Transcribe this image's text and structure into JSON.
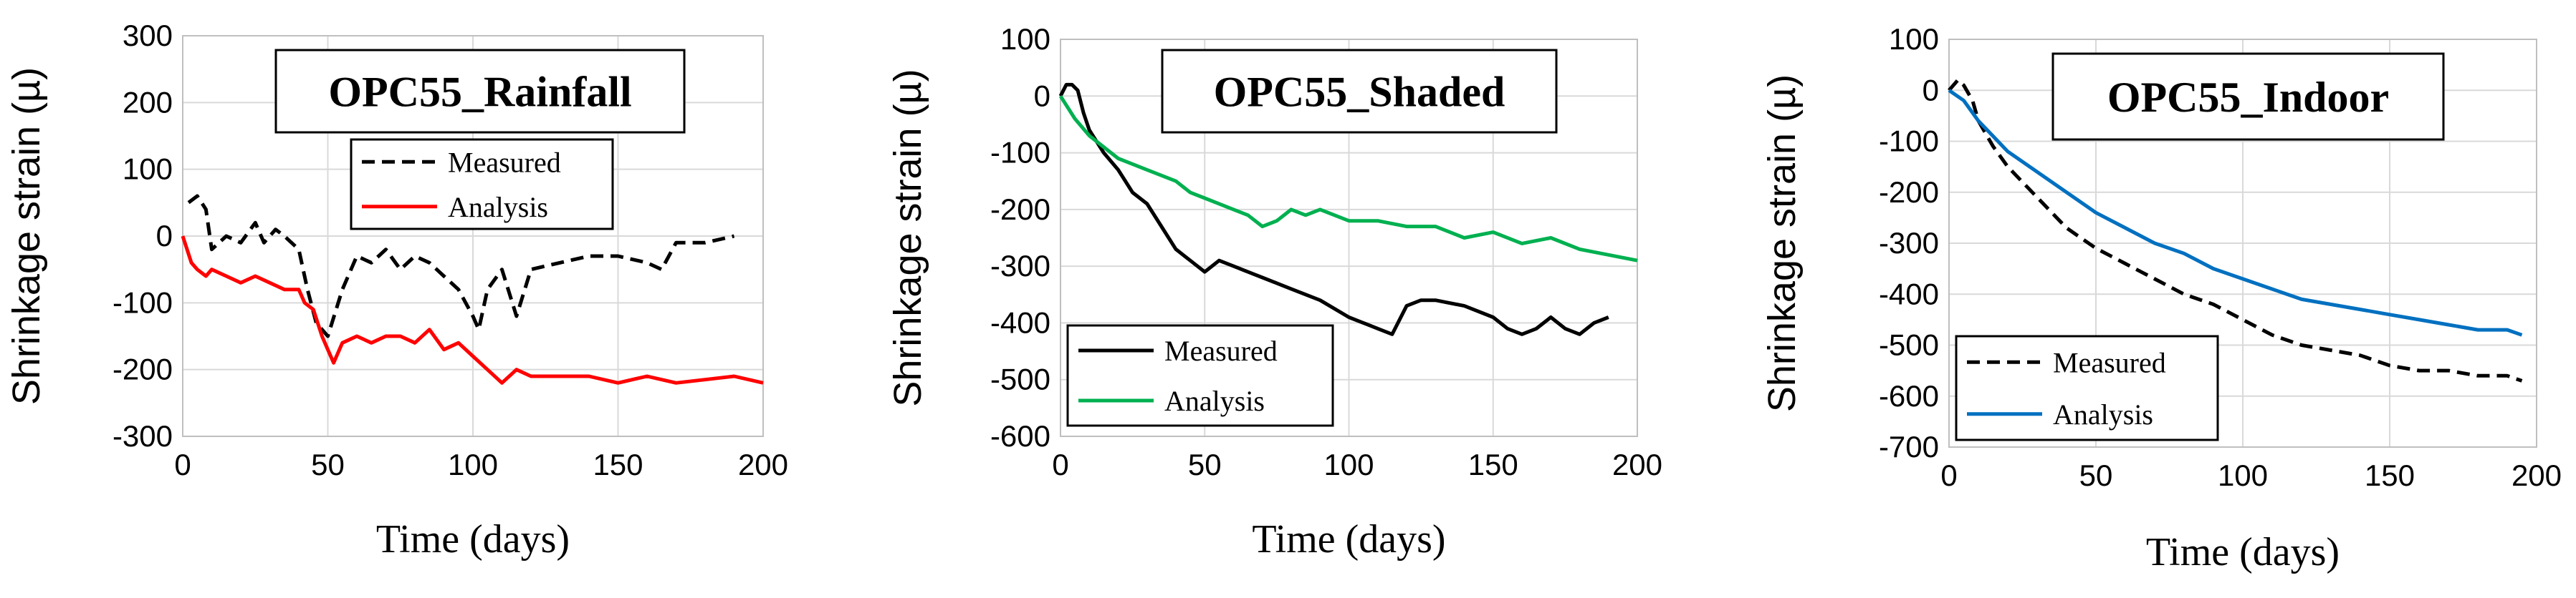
{
  "chart_data": [
    {
      "type": "line",
      "title": "OPC55_Rainfall",
      "xlabel": "Time (days)",
      "ylabel": "Shrinkage strain (µ)",
      "xlim": [
        0,
        200
      ],
      "ylim": [
        -300,
        300
      ],
      "xticks": [
        0,
        50,
        100,
        150,
        200
      ],
      "yticks": [
        -300,
        -200,
        -100,
        0,
        100,
        200,
        300
      ],
      "xtick_labels": [
        "0",
        "50",
        "100",
        "150",
        "200"
      ],
      "ytick_labels": [
        "-300",
        "-200",
        "-100",
        "0",
        "100",
        "200",
        "300"
      ],
      "grid": true,
      "legend": "middle-left",
      "series": [
        {
          "name": "Measured",
          "style": "dashed",
          "color": "#000000",
          "x": [
            2,
            5,
            8,
            10,
            15,
            20,
            25,
            28,
            32,
            35,
            40,
            43,
            46,
            50,
            55,
            60,
            65,
            70,
            75,
            80,
            85,
            90,
            95,
            100,
            102,
            105,
            110,
            115,
            120,
            130,
            140,
            150,
            160,
            165,
            170,
            180,
            190
          ],
          "y": [
            50,
            60,
            40,
            -20,
            0,
            -10,
            20,
            -10,
            10,
            0,
            -20,
            -80,
            -130,
            -150,
            -80,
            -30,
            -40,
            -20,
            -50,
            -30,
            -40,
            -60,
            -80,
            -120,
            -140,
            -80,
            -50,
            -120,
            -50,
            -40,
            -30,
            -30,
            -40,
            -50,
            -10,
            -10,
            0
          ]
        },
        {
          "name": "Analysis",
          "style": "solid",
          "color": "#ff0000",
          "x": [
            0,
            3,
            5,
            8,
            10,
            15,
            20,
            25,
            30,
            35,
            40,
            42,
            45,
            48,
            50,
            52,
            55,
            60,
            65,
            70,
            75,
            80,
            85,
            90,
            95,
            100,
            105,
            110,
            115,
            120,
            130,
            140,
            150,
            160,
            170,
            180,
            190,
            200
          ],
          "y": [
            0,
            -40,
            -50,
            -60,
            -50,
            -60,
            -70,
            -60,
            -70,
            -80,
            -80,
            -100,
            -110,
            -150,
            -170,
            -190,
            -160,
            -150,
            -160,
            -150,
            -150,
            -160,
            -140,
            -170,
            -160,
            -180,
            -200,
            -220,
            -200,
            -210,
            -210,
            -210,
            -220,
            -210,
            -220,
            -215,
            -210,
            -220
          ]
        }
      ]
    },
    {
      "type": "line",
      "title": "OPC55_Shaded",
      "xlabel": "Time (days)",
      "ylabel": "Shrinkage strain (µ)",
      "xlim": [
        0,
        200
      ],
      "ylim": [
        -600,
        100
      ],
      "xticks": [
        0,
        50,
        100,
        150,
        200
      ],
      "yticks": [
        -600,
        -500,
        -400,
        -300,
        -200,
        -100,
        0,
        100
      ],
      "xtick_labels": [
        "0",
        "50",
        "100",
        "150",
        "200"
      ],
      "ytick_labels": [
        "-600",
        "-500",
        "-400",
        "-300",
        "-200",
        "-100",
        "0",
        "100"
      ],
      "grid": true,
      "legend": "bottom-left",
      "series": [
        {
          "name": "Measured",
          "style": "solid",
          "color": "#000000",
          "x": [
            0,
            2,
            4,
            6,
            8,
            10,
            15,
            20,
            25,
            30,
            35,
            40,
            45,
            50,
            55,
            60,
            65,
            70,
            75,
            80,
            90,
            100,
            105,
            110,
            115,
            120,
            125,
            130,
            140,
            150,
            155,
            160,
            165,
            170,
            175,
            180,
            185,
            190
          ],
          "y": [
            0,
            20,
            20,
            10,
            -30,
            -60,
            -100,
            -130,
            -170,
            -190,
            -230,
            -270,
            -290,
            -310,
            -290,
            -300,
            -310,
            -320,
            -330,
            -340,
            -360,
            -390,
            -400,
            -410,
            -420,
            -370,
            -360,
            -360,
            -370,
            -390,
            -410,
            -420,
            -410,
            -390,
            -410,
            -420,
            -400,
            -390
          ]
        },
        {
          "name": "Analysis",
          "style": "solid",
          "color": "#00b050",
          "x": [
            0,
            5,
            10,
            15,
            20,
            25,
            30,
            35,
            40,
            45,
            50,
            55,
            60,
            65,
            70,
            75,
            80,
            85,
            90,
            95,
            100,
            110,
            120,
            130,
            140,
            150,
            160,
            170,
            180,
            190,
            200
          ],
          "y": [
            0,
            -40,
            -70,
            -90,
            -110,
            -120,
            -130,
            -140,
            -150,
            -170,
            -180,
            -190,
            -200,
            -210,
            -230,
            -220,
            -200,
            -210,
            -200,
            -210,
            -220,
            -220,
            -230,
            -230,
            -250,
            -240,
            -260,
            -250,
            -270,
            -280,
            -290
          ]
        }
      ]
    },
    {
      "type": "line",
      "title": "OPC55_Indoor",
      "xlabel": "Time (days)",
      "ylabel": "Shrinkage strain (µ)",
      "xlim": [
        0,
        200
      ],
      "ylim": [
        -700,
        100
      ],
      "xticks": [
        0,
        50,
        100,
        150,
        200
      ],
      "yticks": [
        -700,
        -600,
        -500,
        -400,
        -300,
        -200,
        -100,
        0,
        100
      ],
      "xtick_labels": [
        "0",
        "50",
        "100",
        "150",
        "200"
      ],
      "ytick_labels": [
        "-700",
        "-600",
        "-500",
        "-400",
        "-300",
        "-200",
        "-100",
        "0",
        "100"
      ],
      "grid": true,
      "legend": "bottom-left",
      "series": [
        {
          "name": "Measured",
          "style": "dashed",
          "color": "#000000",
          "x": [
            0,
            3,
            5,
            8,
            10,
            15,
            20,
            25,
            30,
            35,
            40,
            45,
            50,
            60,
            70,
            80,
            90,
            100,
            110,
            120,
            130,
            140,
            150,
            160,
            170,
            180,
            190,
            195
          ],
          "y": [
            0,
            20,
            10,
            -20,
            -60,
            -110,
            -150,
            -180,
            -210,
            -240,
            -270,
            -290,
            -310,
            -340,
            -370,
            -400,
            -420,
            -450,
            -480,
            -500,
            -510,
            -520,
            -540,
            -550,
            -550,
            -560,
            -560,
            -570
          ]
        },
        {
          "name": "Analysis",
          "style": "solid",
          "color": "#0070c0",
          "x": [
            0,
            5,
            10,
            15,
            20,
            30,
            40,
            50,
            60,
            70,
            80,
            90,
            100,
            110,
            120,
            130,
            140,
            150,
            160,
            170,
            180,
            190,
            195
          ],
          "y": [
            0,
            -20,
            -60,
            -90,
            -120,
            -160,
            -200,
            -240,
            -270,
            -300,
            -320,
            -350,
            -370,
            -390,
            -410,
            -420,
            -430,
            -440,
            -450,
            -460,
            -470,
            -470,
            -480
          ]
        }
      ]
    }
  ],
  "colors": {
    "grid": "#d9d9d9",
    "measured_black": "#000000",
    "rainfall_red": "#ff0000",
    "shaded_green": "#00b050",
    "indoor_blue": "#0070c0"
  }
}
